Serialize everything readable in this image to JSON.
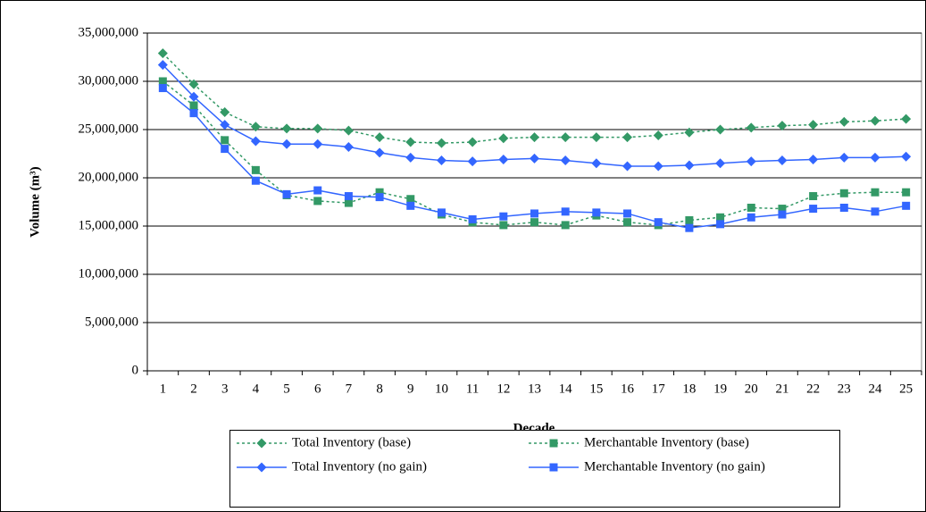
{
  "chart_data": {
    "type": "line",
    "x_label": "Decade",
    "y_label": "Volume (m³)",
    "categories": [
      "1",
      "2",
      "3",
      "4",
      "5",
      "6",
      "7",
      "8",
      "9",
      "10",
      "11",
      "12",
      "13",
      "14",
      "15",
      "16",
      "17",
      "18",
      "19",
      "20",
      "21",
      "22",
      "23",
      "24",
      "25"
    ],
    "ylim": [
      0,
      35000000
    ],
    "yticks": [
      0,
      {
        "value": 5000000,
        "label": "5,000,000"
      },
      {
        "value": 10000000,
        "label": "10,000,000"
      },
      {
        "value": 15000000,
        "label": "15,000,000"
      },
      {
        "value": 20000000,
        "label": "20,000,000"
      },
      {
        "value": 25000000,
        "label": "25,000,000"
      },
      {
        "value": 30000000,
        "label": "30,000,000"
      },
      {
        "value": 35000000,
        "label": "35,000,000"
      }
    ],
    "grid": true,
    "legend": "bottom",
    "series": [
      {
        "name": "Total Inventory (base)",
        "color": "#339966",
        "line_style": "dotted",
        "marker": "diamond",
        "values": [
          32900000,
          29700000,
          26800000,
          25300000,
          25100000,
          25100000,
          24900000,
          24200000,
          23700000,
          23600000,
          23700000,
          24100000,
          24200000,
          24200000,
          24200000,
          24200000,
          24400000,
          24700000,
          25000000,
          25200000,
          25400000,
          25500000,
          25800000,
          25900000,
          26100000
        ]
      },
      {
        "name": "Merchantable Inventory (base)",
        "color": "#339966",
        "line_style": "dotted",
        "marker": "square",
        "values": [
          30000000,
          27500000,
          23900000,
          20800000,
          18200000,
          17600000,
          17400000,
          18500000,
          17800000,
          16200000,
          15400000,
          15100000,
          15400000,
          15100000,
          16100000,
          15400000,
          15100000,
          15600000,
          15900000,
          16900000,
          16800000,
          18100000,
          18400000,
          18500000,
          18500000
        ]
      },
      {
        "name": "Total Inventory (no gain)",
        "color": "#3366ff",
        "line_style": "solid",
        "marker": "diamond",
        "values": [
          31700000,
          28400000,
          25500000,
          23800000,
          23500000,
          23500000,
          23200000,
          22600000,
          22100000,
          21800000,
          21700000,
          21900000,
          22000000,
          21800000,
          21500000,
          21200000,
          21200000,
          21300000,
          21500000,
          21700000,
          21800000,
          21900000,
          22100000,
          22100000,
          22200000
        ]
      },
      {
        "name": "Merchantable Inventory (no gain)",
        "color": "#3366ff",
        "line_style": "solid",
        "marker": "square",
        "values": [
          29300000,
          26700000,
          23000000,
          19700000,
          18300000,
          18700000,
          18100000,
          18000000,
          17100000,
          16400000,
          15700000,
          16000000,
          16300000,
          16500000,
          16400000,
          16300000,
          15400000,
          14800000,
          15200000,
          15900000,
          16200000,
          16800000,
          16900000,
          16500000,
          17100000
        ]
      }
    ]
  }
}
